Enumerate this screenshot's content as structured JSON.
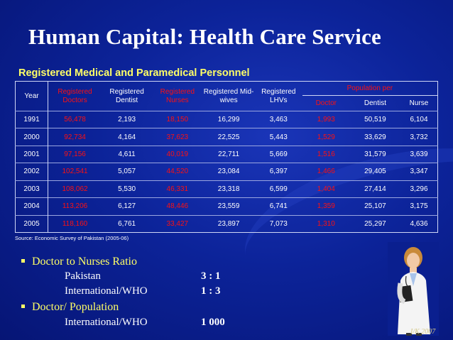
{
  "slide": {
    "title": "Human Capital: Health Care Service",
    "table_title": "Registered Medical and Paramedical Personnel",
    "source": "Source: Economic Survey of Pakistan (2005-06)",
    "credit": "I/K 2007"
  },
  "table": {
    "headers": {
      "year": "Year",
      "doctors": "Registered Doctors",
      "dentist": "Registered Dentist",
      "nurses": "Registered Nurses",
      "midwives": "Registered Mid-wives",
      "lhvs": "Registered LHVs",
      "population_per": "Population per",
      "pop_doctor": "Doctor",
      "pop_dentist": "Dentist",
      "pop_nurse": "Nurse"
    },
    "rows": [
      {
        "year": "1991",
        "doctors": "56,478",
        "dentist": "2,193",
        "nurses": "18,150",
        "midwives": "16,299",
        "lhvs": "3,463",
        "pop_doctor": "1,993",
        "pop_dentist": "50,519",
        "pop_nurse": "6,104"
      },
      {
        "year": "2000",
        "doctors": "92,734",
        "dentist": "4,164",
        "nurses": "37,623",
        "midwives": "22,525",
        "lhvs": "5,443",
        "pop_doctor": "1,529",
        "pop_dentist": "33,629",
        "pop_nurse": "3,732"
      },
      {
        "year": "2001",
        "doctors": "97,156",
        "dentist": "4,611",
        "nurses": "40,019",
        "midwives": "22,711",
        "lhvs": "5,669",
        "pop_doctor": "1,516",
        "pop_dentist": "31,579",
        "pop_nurse": "3,639"
      },
      {
        "year": "2002",
        "doctors": "102,541",
        "dentist": "5,057",
        "nurses": "44,520",
        "midwives": "23,084",
        "lhvs": "6,397",
        "pop_doctor": "1,466",
        "pop_dentist": "29,405",
        "pop_nurse": "3,347"
      },
      {
        "year": "2003",
        "doctors": "108,062",
        "dentist": "5,530",
        "nurses": "46,331",
        "midwives": "23,318",
        "lhvs": "6,599",
        "pop_doctor": "1,404",
        "pop_dentist": "27,414",
        "pop_nurse": "3,296"
      },
      {
        "year": "2004",
        "doctors": "113,206",
        "dentist": "6,127",
        "nurses": "48,446",
        "midwives": "23,559",
        "lhvs": "6,741",
        "pop_doctor": "1,359",
        "pop_dentist": "25,107",
        "pop_nurse": "3,175"
      },
      {
        "year": "2005",
        "doctors": "118,160",
        "dentist": "6,761",
        "nurses": "33,427",
        "midwives": "23,897",
        "lhvs": "7,073",
        "pop_doctor": "1,310",
        "pop_dentist": "25,297",
        "pop_nurse": "4,636"
      }
    ]
  },
  "bullets": [
    {
      "heading": "Doctor to Nurses Ratio",
      "items": [
        {
          "label": "Pakistan",
          "value": "3 : 1"
        },
        {
          "label": "International/WHO",
          "value": "1 : 3"
        }
      ]
    },
    {
      "heading": "Doctor/ Population",
      "items": [
        {
          "label": "International/WHO",
          "value": "1 000"
        }
      ]
    }
  ],
  "colors": {
    "background": "#0c2399",
    "heading": "#ffff66",
    "highlight": "#ff1010",
    "text": "#ffffff"
  }
}
